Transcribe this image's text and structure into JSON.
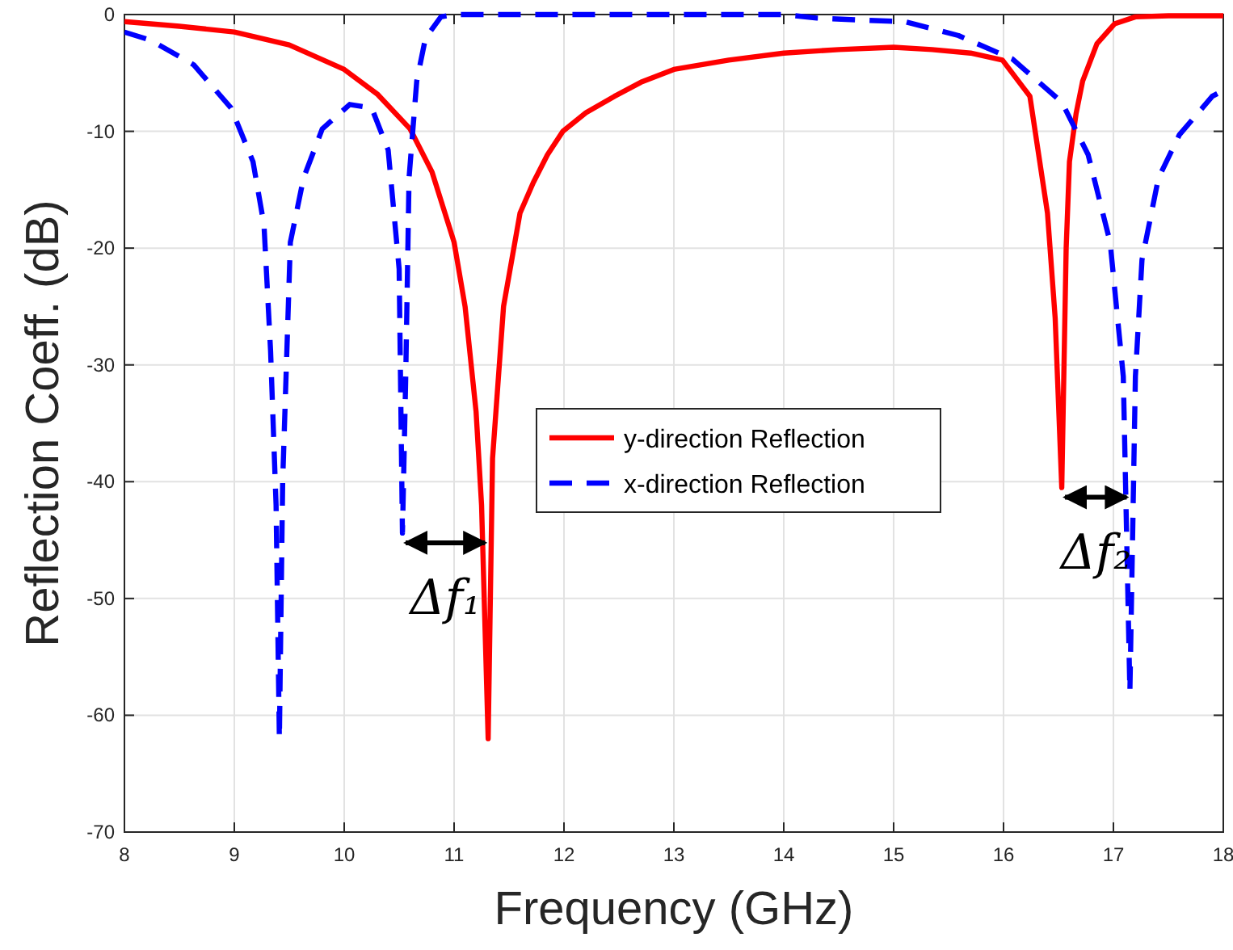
{
  "chart_data": {
    "type": "line",
    "xlabel": "Frequency (GHz)",
    "ylabel": "Reflection Coeff. (dB)",
    "xlim": [
      8,
      18
    ],
    "xticks": [
      8,
      9,
      10,
      11,
      12,
      13,
      14,
      15,
      16,
      17,
      18
    ],
    "ylim": [
      -70,
      0
    ],
    "yticks": [
      -70,
      -60,
      -50,
      -40,
      -30,
      -20,
      -10,
      0
    ],
    "grid": true,
    "legend": "center",
    "series": [
      {
        "name": "y-direction Reflection",
        "color": "#ff0000",
        "line_style": "solid",
        "x": [
          8,
          8.5,
          9,
          9.5,
          10,
          10.3,
          10.6,
          10.8,
          11,
          11.1,
          11.2,
          11.25,
          11.31,
          11.35,
          11.45,
          11.6,
          11.72,
          11.85,
          11.99,
          12.2,
          12.46,
          12.7,
          13,
          13.5,
          14,
          14.5,
          15,
          15.35,
          15.7,
          15.99,
          16.24,
          16.4,
          16.47,
          16.53,
          16.57,
          16.6,
          16.66,
          16.72,
          16.85,
          17.01,
          17.2,
          17.5,
          18
        ],
        "values": [
          -0.6,
          -1,
          -1.5,
          -2.6,
          -4.7,
          -6.8,
          -9.8,
          -13.5,
          -19.5,
          -25,
          -34,
          -42,
          -62,
          -38,
          -25,
          -17,
          -14.4,
          -12,
          -10,
          -8.4,
          -7,
          -5.8,
          -4.7,
          -3.9,
          -3.3,
          -3,
          -2.8,
          -3,
          -3.3,
          -3.9,
          -7,
          -17,
          -26,
          -40.5,
          -20,
          -12.6,
          -8.5,
          -5.7,
          -2.5,
          -0.8,
          -0.2,
          -0.1,
          -0.1
        ]
      },
      {
        "name": "x-direction Reflection",
        "color": "#0000ff",
        "line_style": "dashed",
        "x": [
          8,
          8.24,
          8.63,
          8.97,
          9.17,
          9.27,
          9.33,
          9.38,
          9.41,
          9.44,
          9.51,
          9.63,
          9.8,
          10.05,
          10.25,
          10.4,
          10.5,
          10.53,
          10.56,
          10.59,
          10.66,
          10.74,
          10.88,
          11,
          12,
          13,
          14,
          14.3,
          14.76,
          15.1,
          15.59,
          16.08,
          16.53,
          16.77,
          16.97,
          17.09,
          17.15,
          17.2,
          17.26,
          17.41,
          17.6,
          17.9,
          18
        ],
        "values": [
          -1.5,
          -2.2,
          -4.3,
          -8,
          -12.6,
          -18,
          -28.8,
          -42,
          -62,
          -40,
          -19.5,
          -14,
          -9.8,
          -7.7,
          -8,
          -11.6,
          -21.8,
          -44.4,
          -31,
          -14,
          -5.7,
          -2,
          -0.2,
          0,
          0,
          0,
          0,
          -0.3,
          -0.5,
          -0.6,
          -1.8,
          -3.8,
          -7.5,
          -12,
          -19.5,
          -31,
          -58,
          -31,
          -21,
          -14,
          -10.3,
          -7,
          -6.5
        ]
      }
    ],
    "annotations": [
      "Δf₁",
      "Δf₂"
    ]
  }
}
